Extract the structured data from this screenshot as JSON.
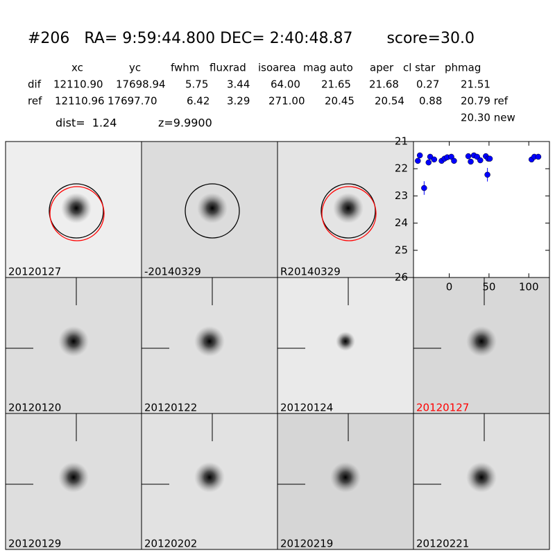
{
  "header": {
    "title": "#206   RA= 9:59:44.800 DEC= 2:40:48.87       score=30.0"
  },
  "table": {
    "columns": [
      "xc",
      "yc",
      "fwhm",
      "fluxrad",
      "isoarea",
      "mag auto",
      "aper",
      "cl star",
      "phmag"
    ],
    "rows": [
      [
        "dif",
        "12110.90",
        "17698.94",
        "5.75",
        "3.44",
        "64.00",
        "21.65",
        "21.68",
        "0.27",
        "21.51"
      ],
      [
        "ref",
        "12110.96",
        "17697.70",
        "6.42",
        "3.29",
        "271.00",
        "20.45",
        "20.54",
        "0.88",
        "20.79 ref"
      ]
    ],
    "extra": "20.30 new"
  },
  "stats": [
    "dist=  1.24",
    "z=9.9900"
  ],
  "stamps": [
    {
      "label": "20120127"
    },
    {
      "label": "-20140329"
    },
    {
      "label": "R20140329"
    },
    {
      "label": "20120120"
    },
    {
      "label": "20120122"
    },
    {
      "label": "20120124"
    },
    {
      "label": "20120127",
      "color": "#ff0000"
    },
    {
      "label": "20120129"
    },
    {
      "label": "20120202"
    },
    {
      "label": "20120219"
    },
    {
      "label": "20120221"
    }
  ],
  "chart_data": {
    "type": "scatter",
    "color": "#0000ff",
    "x": [
      -39.5,
      -37,
      -31.6,
      -26,
      -24,
      -19,
      -9.6,
      -6,
      -2.6,
      2.6,
      6,
      24,
      27,
      31,
      35,
      39,
      46,
      48,
      49,
      51,
      103.5,
      107,
      112
    ],
    "values": [
      21.71,
      21.51,
      22.71,
      21.77,
      21.56,
      21.66,
      21.71,
      21.63,
      21.58,
      21.56,
      21.71,
      21.54,
      21.74,
      21.51,
      21.56,
      21.69,
      21.54,
      22.22,
      21.63,
      21.63,
      21.66,
      21.56,
      21.56
    ],
    "errors": [
      0.06,
      0.06,
      0.25,
      0.08,
      0.06,
      0.06,
      0.06,
      0.06,
      0.06,
      0.06,
      0.06,
      0.06,
      0.08,
      0.06,
      0.08,
      0.08,
      0.06,
      0.25,
      0.06,
      0.08,
      0.06,
      0.06,
      0.06
    ],
    "xlim": [
      -45,
      126
    ],
    "ylim": [
      26,
      21
    ],
    "xticks": [
      0,
      50,
      100
    ],
    "yticks": [
      21,
      22,
      23,
      24,
      25,
      26
    ]
  }
}
